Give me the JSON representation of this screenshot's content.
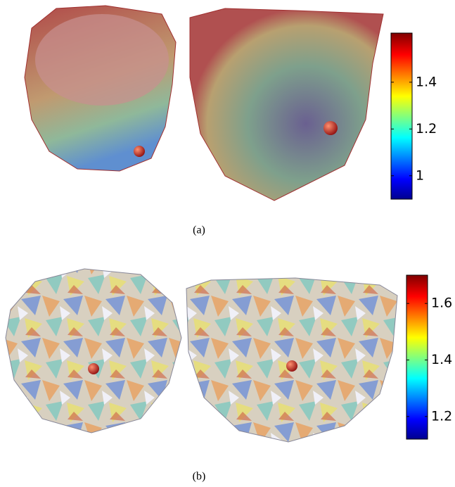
{
  "panels": [
    {
      "label": "(a)",
      "colorbar": {
        "lim": [
          0.9,
          1.61
        ],
        "ticks": [
          1,
          1.2,
          1.4
        ]
      }
    },
    {
      "label": "(b)",
      "colorbar": {
        "lim": [
          1.12,
          1.7
        ],
        "ticks": [
          1.2,
          1.4,
          1.6
        ]
      }
    }
  ]
}
